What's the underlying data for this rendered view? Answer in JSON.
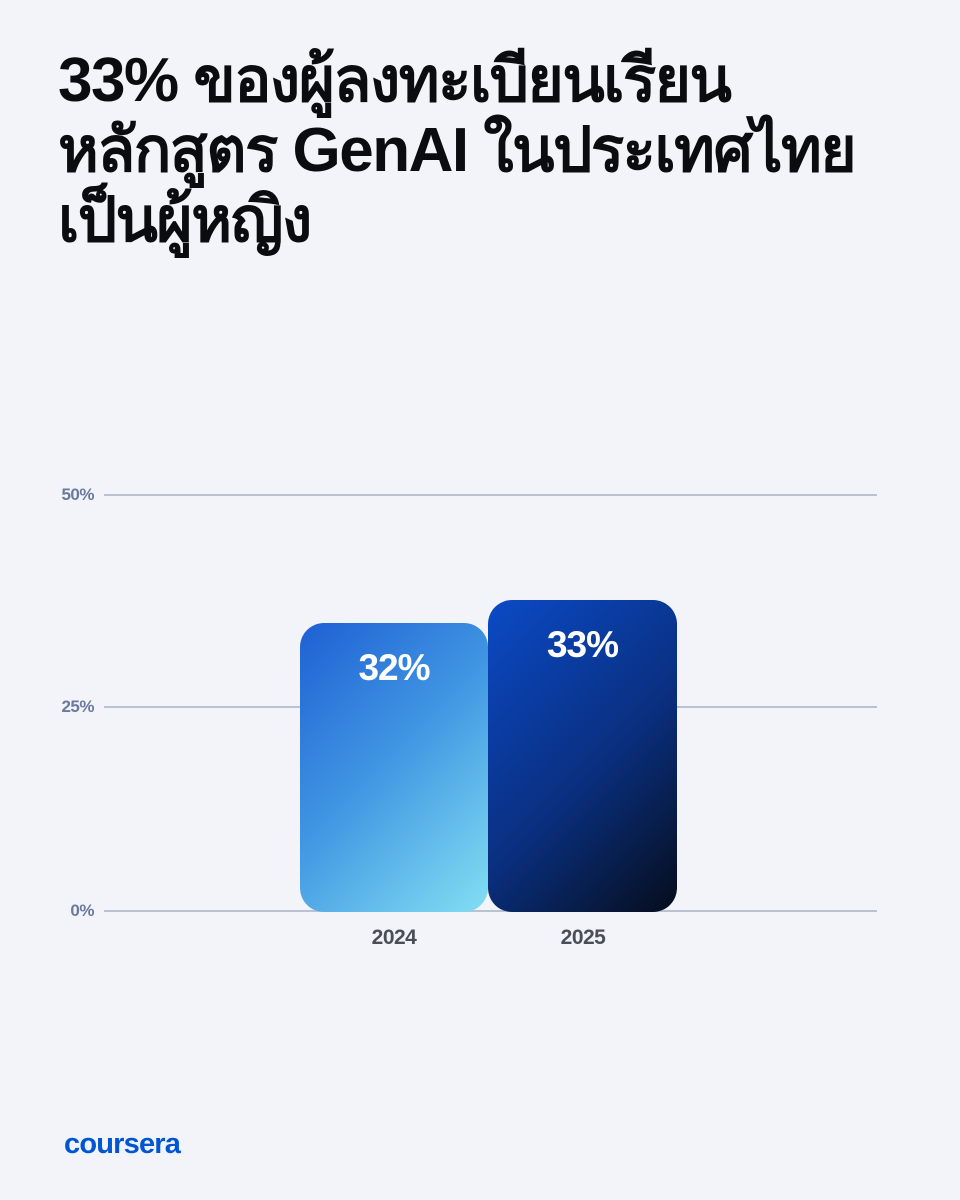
{
  "page": {
    "background_color": "#F2F4F9"
  },
  "title": {
    "full_text": "33% ของผู้ลงทะเบียนเรียนหลักสูตร GenAI ในประเทศไทยเป็นผู้หญิง",
    "lines": [
      "33% ของผู้ลงทะเบียนเรียน",
      "หลักสูตร GenAI ในประเทศไทย",
      "เป็นผู้หญิง"
    ],
    "color": "#0B0C10"
  },
  "chart_data": {
    "type": "bar",
    "categories": [
      "2024",
      "2025"
    ],
    "values": [
      32,
      33
    ],
    "value_labels": [
      "32%",
      "33%"
    ],
    "title": "",
    "xlabel": "",
    "ylabel": "",
    "ylim": [
      0,
      50
    ],
    "yticks": [
      "50%",
      "25%",
      "0%"
    ],
    "grid": true,
    "legend_position": "none",
    "value_label_color": "#FFFFFF",
    "axis_tick_color": "#6B7A9C",
    "gridline_color": "#B9C1D3",
    "category_label_color": "#494E58",
    "bar_gradients": [
      {
        "name": "bar-2024",
        "from": "#1E60D4",
        "to": "#82DFF2"
      },
      {
        "name": "bar-2025",
        "from": "#0B4AC6",
        "to": "#060D1B"
      }
    ]
  },
  "footer": {
    "logo_text": "coursera",
    "logo_color": "#0056D2"
  }
}
